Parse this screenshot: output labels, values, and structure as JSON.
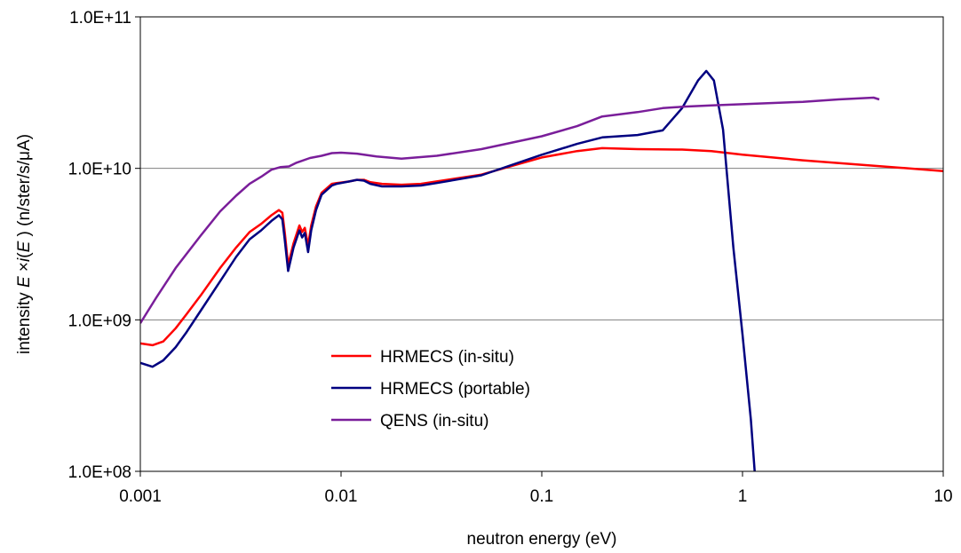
{
  "chart_data": {
    "type": "line",
    "xlabel": "neutron energy (eV)",
    "ylabel": "intensity E ×i(E ) (n/ster/s/μA)",
    "ylabel_parts": {
      "prefix": "intensity ",
      "e1": "E",
      "times": " ×",
      "i": "i",
      "open": "(",
      "e2": "E",
      "close": " ) (n/ster/s/",
      "mu": "μ",
      "unit": "A)"
    },
    "x_scale": "log",
    "y_scale": "log",
    "xlim": [
      0.001,
      10
    ],
    "ylim": [
      100000000,
      100000000000
    ],
    "x_ticks": [
      {
        "value": 0.001,
        "label": "0.001"
      },
      {
        "value": 0.01,
        "label": "0.01"
      },
      {
        "value": 0.1,
        "label": "0.1"
      },
      {
        "value": 1,
        "label": "1"
      },
      {
        "value": 10,
        "label": "10"
      }
    ],
    "y_ticks": [
      {
        "value": 100000000,
        "label": "1.0E+08"
      },
      {
        "value": 1000000000,
        "label": "1.0E+09"
      },
      {
        "value": 10000000000,
        "label": "1.0E+10"
      },
      {
        "value": 100000000000,
        "label": "1.0E+11"
      }
    ],
    "grid": "horizontal",
    "legend_position": "lower-center",
    "series": [
      {
        "name": "HRMECS (in-situ)",
        "color": "#ff0000",
        "x": [
          0.001,
          0.00115,
          0.0013,
          0.0015,
          0.0017,
          0.002,
          0.0025,
          0.003,
          0.0035,
          0.004,
          0.0045,
          0.0049,
          0.0051,
          0.00525,
          0.00545,
          0.0058,
          0.0062,
          0.0064,
          0.0066,
          0.00685,
          0.0071,
          0.0075,
          0.008,
          0.009,
          0.0095,
          0.011,
          0.012,
          0.013,
          0.014,
          0.016,
          0.02,
          0.025,
          0.03,
          0.05,
          0.1,
          0.15,
          0.2,
          0.3,
          0.5,
          0.7,
          1,
          2,
          5,
          10
        ],
        "y": [
          700000000,
          680000000,
          720000000,
          880000000,
          1090000000,
          1450000000,
          2200000000,
          3000000000,
          3800000000,
          4300000000,
          4900000000,
          5300000000,
          5100000000,
          3700000000,
          2300000000,
          3200000000,
          4200000000,
          3800000000,
          4050000000,
          3100000000,
          4200000000,
          5600000000,
          6900000000,
          7900000000,
          8000000000,
          8200000000,
          8400000000,
          8400000000,
          8100000000,
          7900000000,
          7800000000,
          7900000000,
          8200000000,
          9100000000,
          11800000000,
          13000000000,
          13600000000,
          13400000000,
          13300000000,
          13000000000,
          12300000000,
          11300000000,
          10300000000,
          9600000000
        ]
      },
      {
        "name": "HRMECS (portable)",
        "color": "#000080",
        "x": [
          0.001,
          0.00115,
          0.0013,
          0.0015,
          0.0017,
          0.002,
          0.0025,
          0.003,
          0.0035,
          0.004,
          0.0045,
          0.0049,
          0.0051,
          0.00525,
          0.00545,
          0.0058,
          0.0062,
          0.0064,
          0.0066,
          0.00685,
          0.0071,
          0.0075,
          0.008,
          0.009,
          0.0095,
          0.011,
          0.012,
          0.013,
          0.014,
          0.016,
          0.02,
          0.025,
          0.03,
          0.05,
          0.1,
          0.15,
          0.2,
          0.3,
          0.4,
          0.5,
          0.6,
          0.66,
          0.72,
          0.8,
          0.9,
          1,
          1.1,
          1.15
        ],
        "y": [
          520000000,
          490000000,
          540000000,
          660000000,
          830000000,
          1150000000,
          1800000000,
          2600000000,
          3400000000,
          3900000000,
          4500000000,
          4900000000,
          4600000000,
          3300000000,
          2100000000,
          3000000000,
          3900000000,
          3500000000,
          3750000000,
          2800000000,
          3900000000,
          5300000000,
          6700000000,
          7700000000,
          7900000000,
          8200000000,
          8400000000,
          8300000000,
          7900000000,
          7600000000,
          7600000000,
          7700000000,
          8000000000,
          9000000000,
          12300000000,
          14500000000,
          16000000000,
          16600000000,
          17800000000,
          25000000000,
          38000000000,
          44000000000,
          38000000000,
          18000000000,
          3000000000,
          800000000,
          220000000,
          100000000
        ]
      },
      {
        "name": "QENS (in-situ)",
        "color": "#7a1e9a",
        "x": [
          0.001,
          0.0012,
          0.0015,
          0.002,
          0.0025,
          0.003,
          0.0035,
          0.004,
          0.0045,
          0.005,
          0.0055,
          0.006,
          0.007,
          0.008,
          0.009,
          0.01,
          0.012,
          0.015,
          0.02,
          0.03,
          0.05,
          0.1,
          0.15,
          0.2,
          0.3,
          0.4,
          0.5,
          0.7,
          1,
          2,
          3,
          4.5,
          4.8
        ],
        "y": [
          950000000,
          1400000000,
          2200000000,
          3600000000,
          5200000000,
          6600000000,
          7900000000,
          8800000000,
          9800000000,
          10200000000,
          10300000000,
          10900000000,
          11700000000,
          12100000000,
          12600000000,
          12700000000,
          12500000000,
          12000000000,
          11600000000,
          12100000000,
          13400000000,
          16300000000,
          19000000000,
          22000000000,
          23500000000,
          25000000000,
          25500000000,
          26000000000,
          26500000000,
          27500000000,
          28500000000,
          29300000000,
          28500000000
        ]
      }
    ]
  }
}
